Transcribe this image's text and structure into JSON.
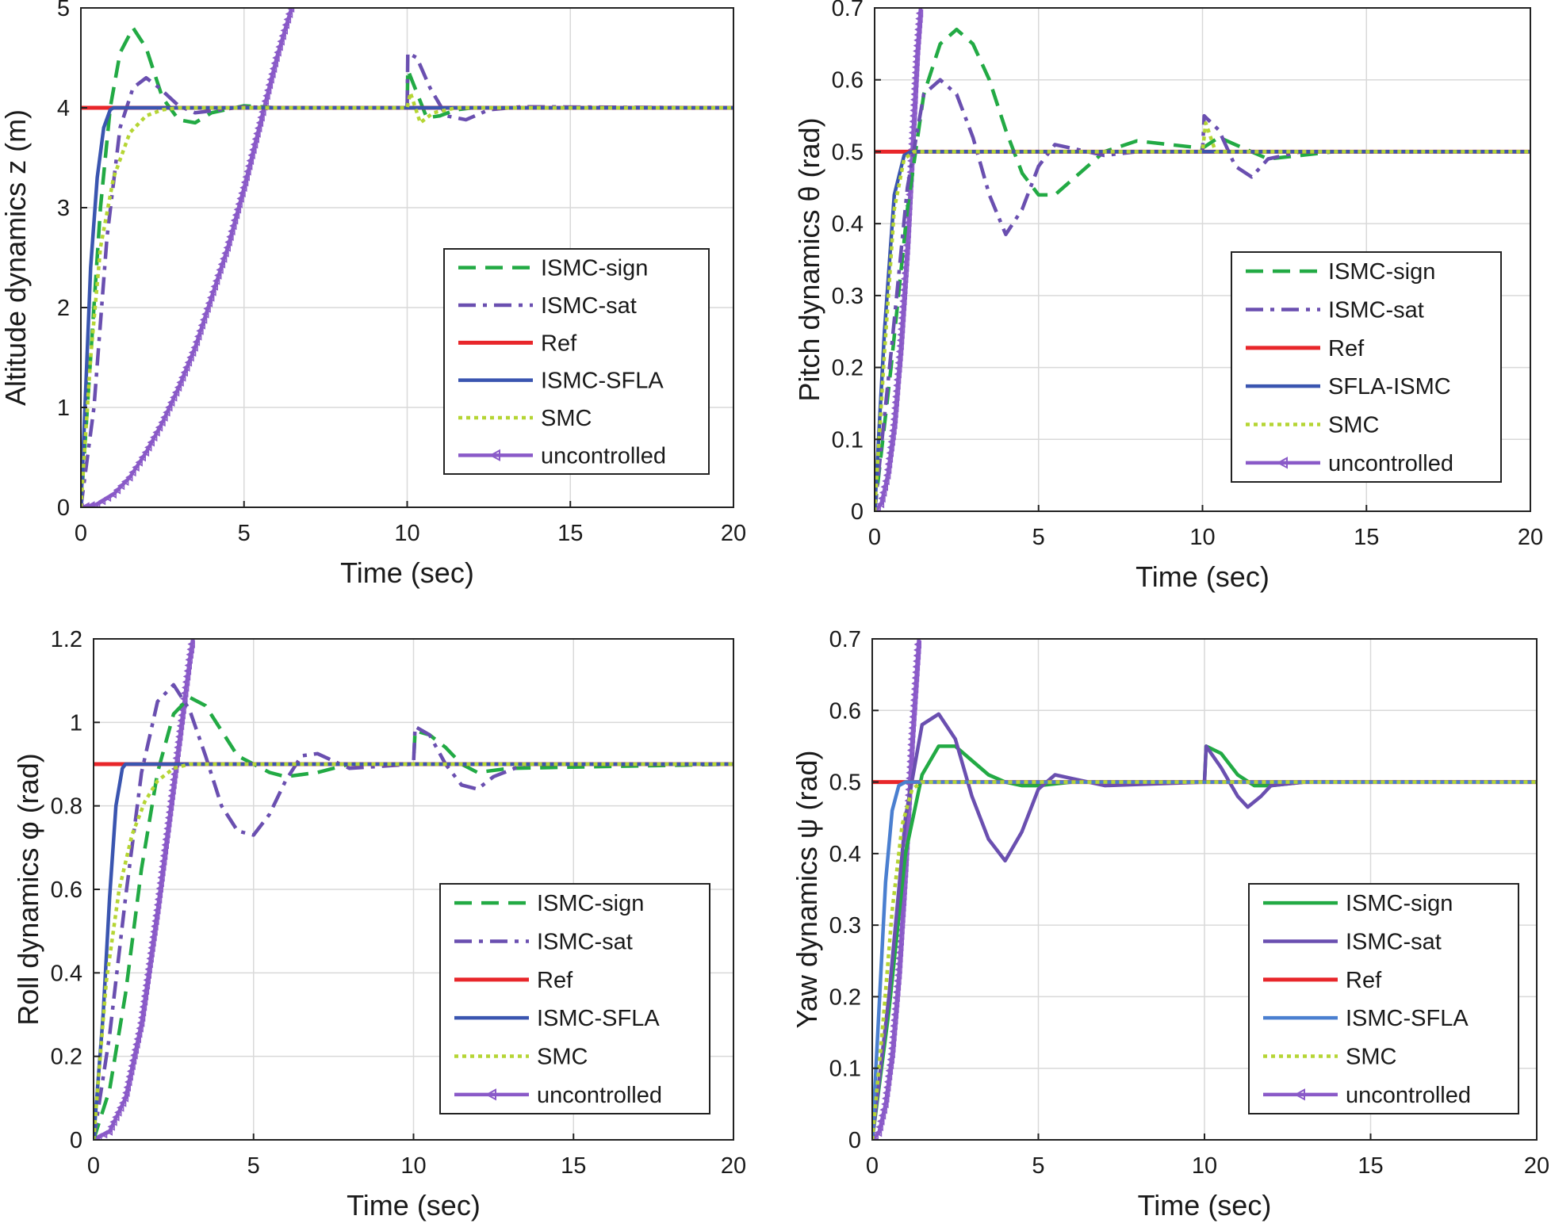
{
  "chart_data": [
    {
      "type": "line",
      "xlabel": "Time (sec)",
      "ylabel": "Altitude dynamics z (m)",
      "xlim": [
        0,
        20
      ],
      "ylim": [
        0,
        5
      ],
      "xticks": [
        "0",
        "5",
        "10",
        "15",
        "20"
      ],
      "yticks": [
        "0",
        "1",
        "2",
        "3",
        "4",
        "5"
      ],
      "grid": true,
      "legend": "lower-right",
      "series": [
        {
          "name": "ISMC-sign",
          "color": "#22aa44",
          "style": "dashed",
          "x": [
            0,
            0.3,
            0.6,
            0.9,
            1.2,
            1.6,
            2.0,
            2.5,
            3.0,
            3.5,
            4.0,
            5.0,
            6.0,
            8.0,
            10.0,
            10.02,
            10.3,
            10.6,
            11.0,
            11.5,
            12.0,
            13.0,
            14.0,
            20.0
          ],
          "y": [
            0,
            1.5,
            3.0,
            4.0,
            4.55,
            4.8,
            4.6,
            4.1,
            3.88,
            3.85,
            3.95,
            4.02,
            4.0,
            4.0,
            4.0,
            4.38,
            4.15,
            3.9,
            3.92,
            3.98,
            4.0,
            4.0,
            4.0,
            4.0
          ]
        },
        {
          "name": "ISMC-sat",
          "color": "#6a4fb0",
          "style": "dashdot",
          "x": [
            0,
            0.4,
            0.8,
            1.2,
            1.6,
            2.0,
            2.4,
            3.0,
            3.5,
            4.0,
            5.0,
            6.0,
            8.0,
            10.0,
            10.02,
            10.3,
            10.7,
            11.2,
            11.8,
            12.5,
            13.5,
            20.0
          ],
          "y": [
            0,
            1.0,
            2.7,
            3.8,
            4.2,
            4.3,
            4.2,
            4.02,
            3.95,
            3.97,
            4.01,
            4.0,
            4.0,
            4.0,
            4.55,
            4.5,
            4.2,
            3.92,
            3.88,
            3.98,
            4.01,
            4.0
          ]
        },
        {
          "name": "Ref",
          "color": "#e8262a",
          "style": "solid",
          "x": [
            0,
            20
          ],
          "y": [
            4,
            4
          ]
        },
        {
          "name": "ISMC-SFLA",
          "color": "#3a55b0",
          "style": "solid",
          "x": [
            0,
            0.15,
            0.3,
            0.5,
            0.7,
            0.9,
            1.0,
            20.0
          ],
          "y": [
            0,
            1.2,
            2.4,
            3.3,
            3.8,
            3.98,
            4.0,
            4.0
          ]
        },
        {
          "name": "SMC",
          "color": "#b5d534",
          "style": "dotted",
          "x": [
            0,
            0.3,
            0.6,
            1.0,
            1.5,
            2.0,
            2.5,
            3.0,
            10.0,
            10.1,
            10.4,
            10.8,
            11.5,
            20.0
          ],
          "y": [
            0,
            1.5,
            2.6,
            3.3,
            3.75,
            3.92,
            3.98,
            4.0,
            4.0,
            4.15,
            3.85,
            3.95,
            4.0,
            4.0
          ]
        },
        {
          "name": "uncontrolled",
          "color": "#8a5ac8",
          "style": "markers",
          "x": [
            0,
            0.5,
            1.0,
            1.5,
            2.0,
            2.5,
            3.0,
            3.5,
            4.0,
            4.5,
            5.0,
            5.5,
            6.0,
            6.5
          ],
          "y": [
            0,
            0.03,
            0.13,
            0.3,
            0.55,
            0.85,
            1.2,
            1.6,
            2.1,
            2.6,
            3.2,
            3.85,
            4.5,
            5.05
          ]
        }
      ]
    },
    {
      "type": "line",
      "xlabel": "Time (sec)",
      "ylabel": "Pitch dynamics   θ (rad)",
      "xlim": [
        0,
        20
      ],
      "ylim": [
        0,
        0.7
      ],
      "xticks": [
        "0",
        "5",
        "10",
        "15",
        "20"
      ],
      "yticks": [
        "0",
        "0.1",
        "0.2",
        "0.3",
        "0.4",
        "0.5",
        "0.6",
        "0.7"
      ],
      "grid": true,
      "legend": "lower-right",
      "series": [
        {
          "name": "ISMC-sign",
          "color": "#22aa44",
          "style": "dashed",
          "x": [
            0,
            0.5,
            1.0,
            1.5,
            2.0,
            2.5,
            3.0,
            3.5,
            4.0,
            4.5,
            5.0,
            5.5,
            6.0,
            7.0,
            8.0,
            9.0,
            10.0,
            10.5,
            11.0,
            12.0,
            13.0,
            14.0,
            15.0,
            20.0
          ],
          "y": [
            0,
            0.2,
            0.42,
            0.58,
            0.65,
            0.67,
            0.65,
            0.6,
            0.53,
            0.47,
            0.44,
            0.44,
            0.46,
            0.5,
            0.515,
            0.51,
            0.505,
            0.52,
            0.51,
            0.49,
            0.495,
            0.5,
            0.5,
            0.5
          ]
        },
        {
          "name": "ISMC-sat",
          "color": "#6a4fb0",
          "style": "dashdot",
          "x": [
            0,
            0.5,
            1.0,
            1.5,
            2.0,
            2.5,
            3.0,
            3.5,
            4.0,
            4.5,
            5.0,
            5.5,
            6.0,
            7.0,
            8.0,
            10.0,
            10.05,
            10.5,
            11.0,
            11.5,
            12.0,
            13.0,
            20.0
          ],
          "y": [
            0,
            0.22,
            0.45,
            0.58,
            0.6,
            0.58,
            0.52,
            0.44,
            0.385,
            0.42,
            0.48,
            0.51,
            0.505,
            0.495,
            0.5,
            0.5,
            0.55,
            0.53,
            0.48,
            0.465,
            0.49,
            0.5,
            0.5
          ]
        },
        {
          "name": "Ref",
          "color": "#e8262a",
          "style": "solid",
          "x": [
            0,
            20
          ],
          "y": [
            0.5,
            0.5
          ]
        },
        {
          "name": "SFLA-ISMC",
          "color": "#3a55b0",
          "style": "solid",
          "x": [
            0,
            0.3,
            0.6,
            0.9,
            1.1,
            20.0
          ],
          "y": [
            0,
            0.25,
            0.44,
            0.495,
            0.5,
            0.5
          ]
        },
        {
          "name": "SMC",
          "color": "#b5d534",
          "style": "dotted",
          "x": [
            0,
            0.3,
            0.6,
            0.9,
            1.2,
            10.0,
            10.1,
            10.4,
            20.0
          ],
          "y": [
            0,
            0.22,
            0.42,
            0.49,
            0.5,
            0.5,
            0.54,
            0.5,
            0.5
          ]
        },
        {
          "name": "uncontrolled",
          "color": "#8a5ac8",
          "style": "markers",
          "x": [
            0,
            0.2,
            0.4,
            0.6,
            0.8,
            1.0,
            1.2,
            1.3,
            1.4
          ],
          "y": [
            0,
            0.01,
            0.05,
            0.12,
            0.23,
            0.37,
            0.55,
            0.64,
            0.7
          ]
        }
      ]
    },
    {
      "type": "line",
      "xlabel": "Time (sec)",
      "ylabel": "Roll dynamics   φ (rad)",
      "xlim": [
        0,
        20
      ],
      "ylim": [
        0,
        1.2
      ],
      "xticks": [
        "0",
        "5",
        "10",
        "15",
        "20"
      ],
      "yticks": [
        "0",
        "0.2",
        "0.4",
        "0.6",
        "0.8",
        "1",
        "1.2"
      ],
      "grid": true,
      "legend": "lower-right",
      "series": [
        {
          "name": "ISMC-sign",
          "color": "#22aa44",
          "style": "dashed",
          "x": [
            0,
            0.5,
            1.0,
            1.5,
            2.0,
            2.5,
            3.0,
            3.5,
            4.0,
            4.5,
            5.0,
            5.5,
            6.0,
            7.0,
            8.0,
            9.0,
            10.0,
            10.05,
            10.5,
            11.0,
            11.5,
            12.0,
            13.0,
            20.0
          ],
          "y": [
            0,
            0.12,
            0.35,
            0.65,
            0.88,
            1.02,
            1.06,
            1.04,
            0.98,
            0.92,
            0.9,
            0.88,
            0.87,
            0.88,
            0.9,
            0.9,
            0.9,
            0.98,
            0.97,
            0.94,
            0.9,
            0.88,
            0.89,
            0.9
          ]
        },
        {
          "name": "ISMC-sat",
          "color": "#6a4fb0",
          "style": "dashdot",
          "x": [
            0,
            0.5,
            1.0,
            1.5,
            2.0,
            2.5,
            3.0,
            3.5,
            4.0,
            4.5,
            5.0,
            5.5,
            6.0,
            6.5,
            7.0,
            8.0,
            10.0,
            10.05,
            10.5,
            11.0,
            11.5,
            12.0,
            12.5,
            13.5,
            20.0
          ],
          "y": [
            0,
            0.25,
            0.58,
            0.88,
            1.05,
            1.09,
            1.03,
            0.92,
            0.8,
            0.74,
            0.73,
            0.78,
            0.86,
            0.92,
            0.925,
            0.89,
            0.9,
            0.99,
            0.97,
            0.9,
            0.85,
            0.84,
            0.87,
            0.9,
            0.9
          ]
        },
        {
          "name": "Ref",
          "color": "#e8262a",
          "style": "solid",
          "x": [
            0,
            20
          ],
          "y": [
            0.9,
            0.9
          ]
        },
        {
          "name": "ISMC-SFLA",
          "color": "#3a55b0",
          "style": "solid",
          "x": [
            0,
            0.3,
            0.5,
            0.7,
            0.9,
            1.0,
            20.0
          ],
          "y": [
            0,
            0.3,
            0.58,
            0.8,
            0.89,
            0.9,
            0.9
          ]
        },
        {
          "name": "SMC",
          "color": "#b5d534",
          "style": "dotted",
          "x": [
            0,
            0.4,
            0.8,
            1.2,
            1.6,
            2.0,
            2.5,
            3.0,
            20.0
          ],
          "y": [
            0,
            0.38,
            0.6,
            0.73,
            0.81,
            0.86,
            0.89,
            0.9,
            0.9
          ]
        },
        {
          "name": "uncontrolled",
          "color": "#8a5ac8",
          "style": "markers",
          "x": [
            0,
            0.5,
            1.0,
            1.5,
            2.0,
            2.5,
            2.8,
            3.0,
            3.1
          ],
          "y": [
            0,
            0.02,
            0.1,
            0.28,
            0.55,
            0.85,
            1.03,
            1.15,
            1.2
          ]
        }
      ]
    },
    {
      "type": "line",
      "xlabel": "Time (sec)",
      "ylabel": "Yaw dynamics   ψ (rad)",
      "xlim": [
        0,
        20
      ],
      "ylim": [
        0,
        0.7
      ],
      "xticks": [
        "0",
        "5",
        "10",
        "15",
        "20"
      ],
      "yticks": [
        "0",
        "0.1",
        "0.2",
        "0.3",
        "0.4",
        "0.5",
        "0.6",
        "0.7"
      ],
      "grid": true,
      "legend": "lower-right",
      "series": [
        {
          "name": "ISMC-sign",
          "color": "#22aa44",
          "style": "solid",
          "x": [
            0,
            0.5,
            1.0,
            1.5,
            2.0,
            2.5,
            3.0,
            3.5,
            4.0,
            4.5,
            5.0,
            6.0,
            8.0,
            10.0,
            10.05,
            10.5,
            11.0,
            11.5,
            12.0,
            13.0,
            20.0
          ],
          "y": [
            0,
            0.18,
            0.4,
            0.51,
            0.55,
            0.55,
            0.53,
            0.51,
            0.5,
            0.495,
            0.495,
            0.5,
            0.5,
            0.5,
            0.55,
            0.54,
            0.51,
            0.495,
            0.495,
            0.5,
            0.5
          ]
        },
        {
          "name": "ISMC-sat",
          "color": "#6a4fb0",
          "style": "solid",
          "x": [
            0,
            0.5,
            1.0,
            1.5,
            2.0,
            2.5,
            3.0,
            3.5,
            4.0,
            4.5,
            5.0,
            5.5,
            6.0,
            7.0,
            10.0,
            10.05,
            10.5,
            11.0,
            11.3,
            11.7,
            12.0,
            13.0,
            20.0
          ],
          "y": [
            0,
            0.2,
            0.45,
            0.58,
            0.595,
            0.56,
            0.48,
            0.42,
            0.39,
            0.43,
            0.49,
            0.51,
            0.505,
            0.495,
            0.5,
            0.55,
            0.52,
            0.48,
            0.465,
            0.48,
            0.495,
            0.5,
            0.5
          ]
        },
        {
          "name": "Ref",
          "color": "#e8262a",
          "style": "solid",
          "x": [
            0,
            20
          ],
          "y": [
            0.5,
            0.5
          ]
        },
        {
          "name": "ISMC-SFLA",
          "color": "#4a7fd0",
          "style": "solid",
          "x": [
            0,
            0.2,
            0.4,
            0.6,
            0.8,
            1.0,
            20.0
          ],
          "y": [
            0,
            0.18,
            0.36,
            0.46,
            0.495,
            0.5,
            0.5
          ]
        },
        {
          "name": "SMC",
          "color": "#b5d534",
          "style": "dotted",
          "x": [
            0,
            0.3,
            0.6,
            0.9,
            1.2,
            1.5,
            20.0
          ],
          "y": [
            0,
            0.15,
            0.32,
            0.44,
            0.49,
            0.5,
            0.5
          ]
        },
        {
          "name": "uncontrolled",
          "color": "#8a5ac8",
          "style": "markers",
          "x": [
            0,
            0.2,
            0.4,
            0.6,
            0.8,
            1.0,
            1.2,
            1.4
          ],
          "y": [
            0,
            0.01,
            0.05,
            0.12,
            0.23,
            0.38,
            0.56,
            0.7
          ]
        }
      ]
    }
  ]
}
